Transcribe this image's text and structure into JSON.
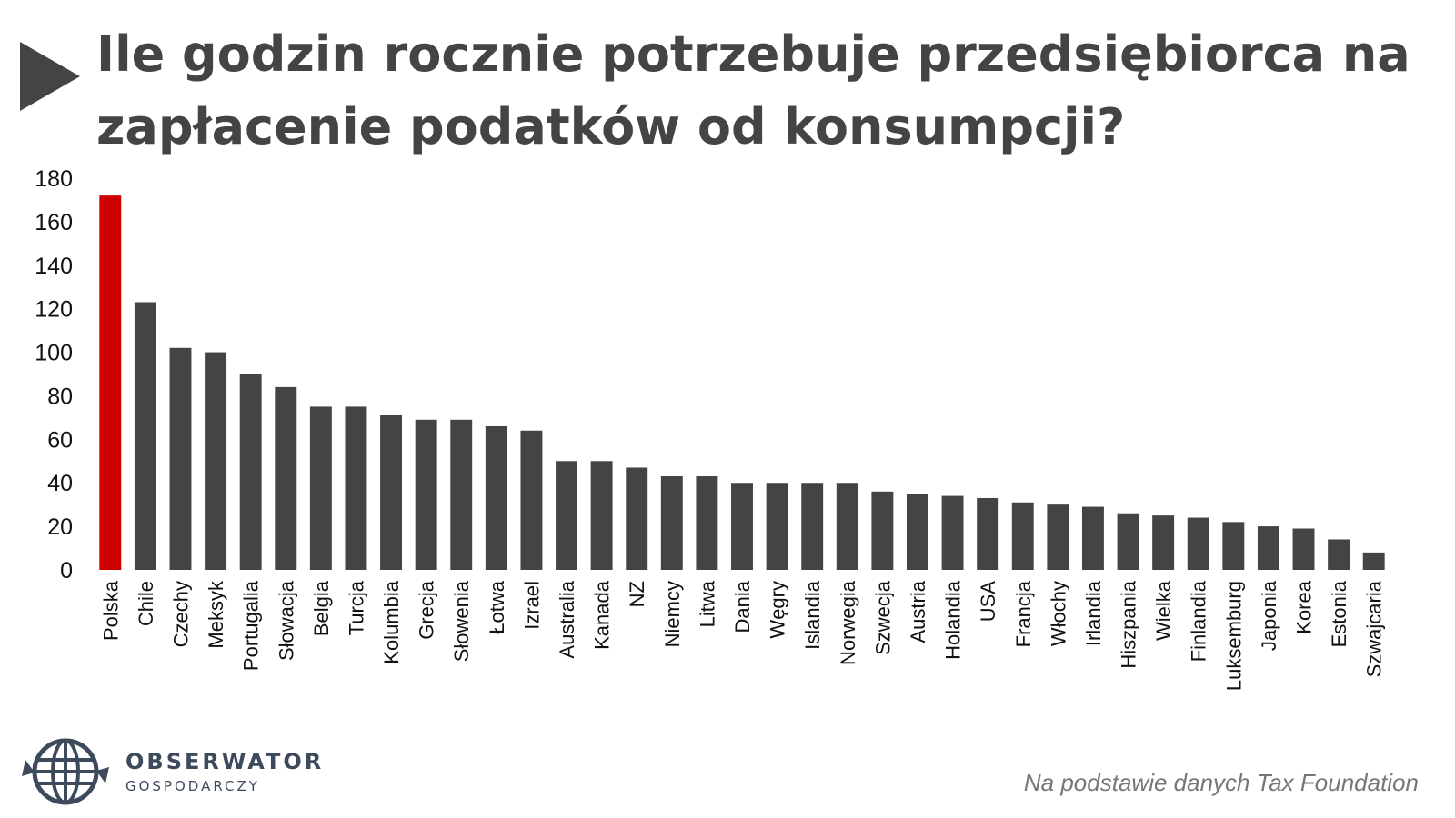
{
  "header": {
    "title": "Ile godzin rocznie potrzebuje przedsiębiorca na zapłacenie podatków od konsumpcji?",
    "icon": "play-icon"
  },
  "chart_data": {
    "type": "bar",
    "title": "Ile godzin rocznie potrzebuje przedsiębiorca na zapłacenie podatków od konsumpcji?",
    "xlabel": "",
    "ylabel": "",
    "ylim": [
      0,
      180
    ],
    "yticks": [
      0,
      20,
      40,
      60,
      80,
      100,
      120,
      140,
      160,
      180
    ],
    "grid": false,
    "categories": [
      "Polska",
      "Chile",
      "Czechy",
      "Meksyk",
      "Portugalia",
      "Słowacja",
      "Belgia",
      "Turcja",
      "Kolumbia",
      "Grecja",
      "Słowenia",
      "Łotwa",
      "Izrael",
      "Australia",
      "Kanada",
      "NZ",
      "Niemcy",
      "Litwa",
      "Dania",
      "Węgry",
      "Islandia",
      "Norwegia",
      "Szwecja",
      "Austria",
      "Holandia",
      "USA",
      "Francja",
      "Włochy",
      "Irlandia",
      "Hiszpania",
      "Wielka",
      "Finlandia",
      "Luksemburg",
      "Japonia",
      "Korea",
      "Estonia",
      "Szwajcaria"
    ],
    "values": [
      172,
      123,
      102,
      100,
      90,
      84,
      75,
      75,
      71,
      69,
      69,
      66,
      64,
      50,
      50,
      47,
      43,
      43,
      40,
      40,
      40,
      40,
      36,
      35,
      34,
      33,
      31,
      30,
      29,
      26,
      25,
      24,
      22,
      20,
      19,
      14,
      8
    ],
    "highlight_category": "Polska",
    "highlight_color": "#cc0000",
    "bar_color": "#444444"
  },
  "footer": {
    "brand_main": "OBSERWATOR",
    "brand_sub": "GOSPODARCZY",
    "brand_icon": "globe-arrows-icon",
    "source": "Na podstawie danych Tax Foundation"
  }
}
